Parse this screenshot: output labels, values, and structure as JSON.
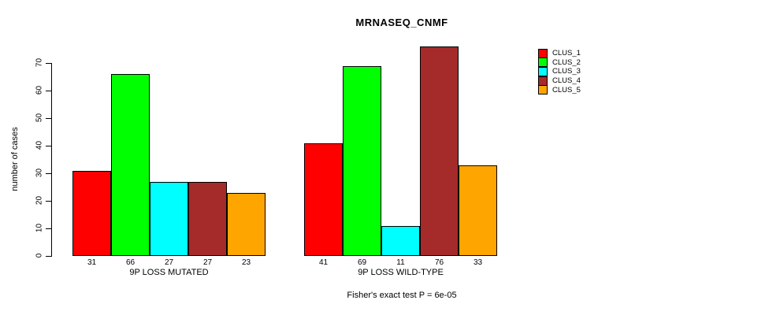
{
  "title": "MRNASEQ_CNMF",
  "ylabel": "number of cases",
  "footer": "Fisher's exact test P = 6e-05",
  "legend": {
    "items": [
      {
        "label": "CLUS_1",
        "color": "#FF0000"
      },
      {
        "label": "CLUS_2",
        "color": "#00FF00"
      },
      {
        "label": "CLUS_3",
        "color": "#00FFFF"
      },
      {
        "label": "CLUS_4",
        "color": "#A52A2A"
      },
      {
        "label": "CLUS_5",
        "color": "#FFA500"
      }
    ]
  },
  "chart_data": {
    "type": "bar",
    "title": "MRNASEQ_CNMF",
    "ylabel": "number of cases",
    "xlabel": "",
    "ylim": [
      0,
      76
    ],
    "yticks": [
      0,
      10,
      20,
      30,
      40,
      50,
      60,
      70
    ],
    "grid": false,
    "legend_position": "right",
    "series": [
      "CLUS_1",
      "CLUS_2",
      "CLUS_3",
      "CLUS_4",
      "CLUS_5"
    ],
    "colors": [
      "#FF0000",
      "#00FF00",
      "#00FFFF",
      "#A52A2A",
      "#FFA500"
    ],
    "groups": [
      {
        "label": "9P LOSS MUTATED",
        "values": [
          31,
          66,
          27,
          27,
          23
        ]
      },
      {
        "label": "9P LOSS WILD-TYPE",
        "values": [
          41,
          69,
          11,
          76,
          33
        ]
      }
    ],
    "annotation": "Fisher's exact test P = 6e-05"
  }
}
